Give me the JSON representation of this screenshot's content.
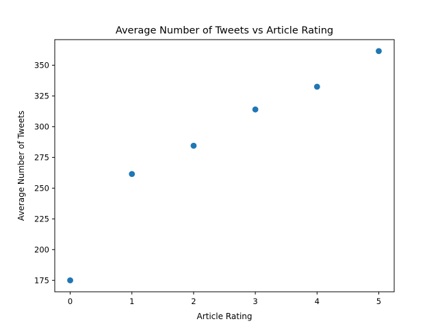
{
  "chart_data": {
    "type": "scatter",
    "title": "Average Number of Tweets vs Article Rating",
    "xlabel": "Article Rating",
    "ylabel": "Average Number of Tweets",
    "x": [
      0,
      1,
      2,
      3,
      4,
      5
    ],
    "y": [
      175,
      261.5,
      284.5,
      314,
      332.5,
      361.5
    ],
    "xlim": [
      -0.25,
      5.25
    ],
    "ylim": [
      165.7,
      370.8
    ],
    "xticks": [
      "0",
      "1",
      "2",
      "3",
      "4",
      "5"
    ],
    "yticks": [
      "175",
      "200",
      "225",
      "250",
      "275",
      "300",
      "325",
      "350"
    ],
    "grid": false,
    "marker_color": "#1f77b4"
  }
}
